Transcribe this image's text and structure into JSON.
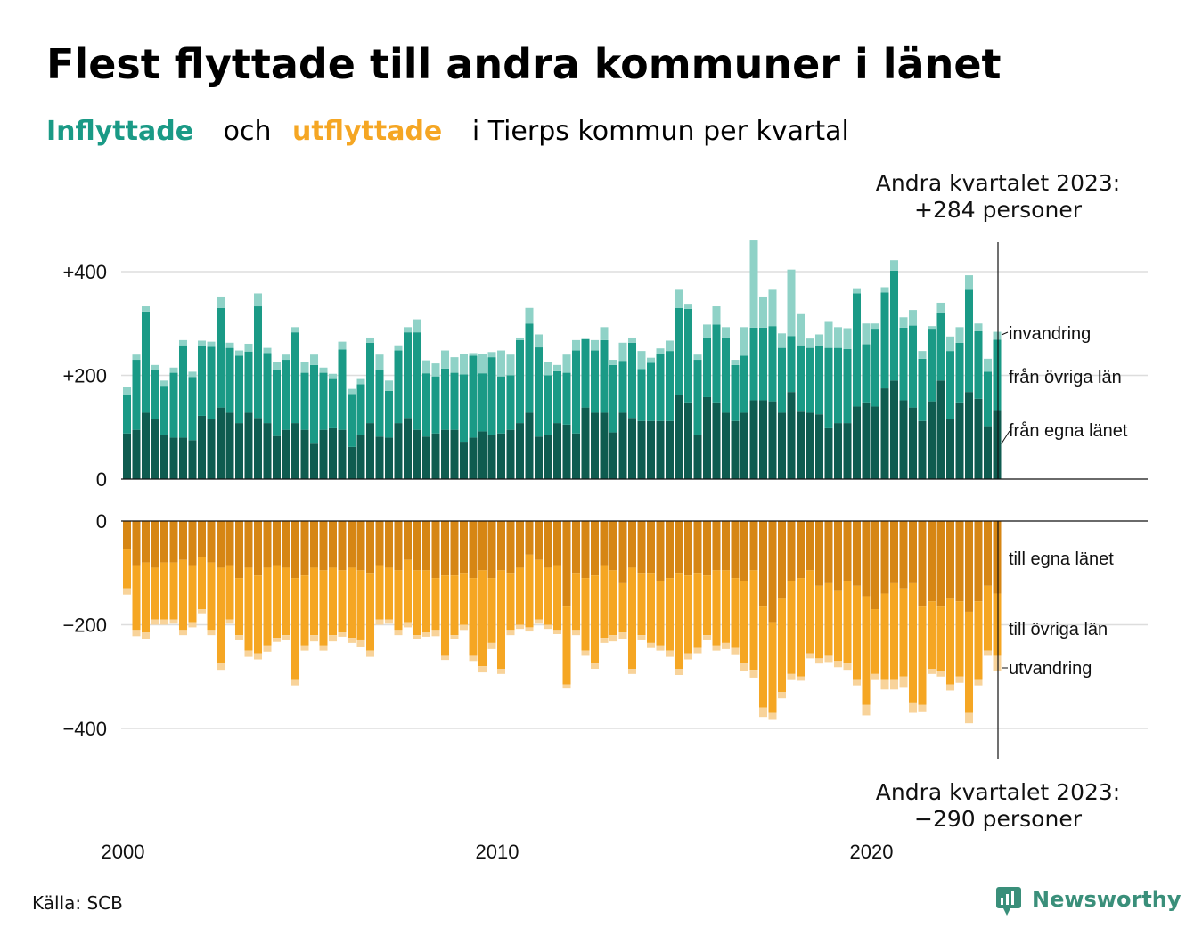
{
  "title": "Flest flyttade till andra kommuner i länet",
  "subtitle": {
    "part1": "Inflyttade",
    "part2": "och",
    "part3": "utflyttade",
    "part4": "i Tierps kommun per kvartal"
  },
  "colors": {
    "in_own": "#0f5c50",
    "in_other": "#1a9a86",
    "in_abroad": "#8fd2c7",
    "out_own": "#d68614",
    "out_other": "#f5a623",
    "out_abroad": "#f8d39a",
    "subtitle_in": "#1a9a86",
    "subtitle_out": "#f5a623",
    "logo": "#3a8f7a"
  },
  "annotations": {
    "top_line1": "Andra kvartalet 2023:",
    "top_line2": "+284 personer",
    "bottom_line1": "Andra kvartalet 2023:",
    "bottom_line2": "−290 personer"
  },
  "labels": {
    "invandring": "invandring",
    "fran_ovriga": "från övriga län",
    "fran_egna": "från egna länet",
    "till_egna": "till egna länet",
    "till_ovriga": "till övriga län",
    "utvandring": "utvandring"
  },
  "source": "Källa: SCB",
  "logo": "Newsworthy",
  "chart_data": {
    "type": "bar",
    "x_start": "2000 Q1",
    "x_labels": [
      "2000",
      "2010",
      "2020"
    ],
    "top_ticks": [
      "0",
      "+200",
      "+400"
    ],
    "bottom_ticks": [
      "0",
      "−200",
      "−400"
    ],
    "ylim_top": [
      0,
      460
    ],
    "ylim_bottom": [
      -400,
      0
    ],
    "inflow": {
      "own_county": [
        88,
        95,
        128,
        115,
        85,
        80,
        80,
        75,
        122,
        115,
        138,
        128,
        108,
        128,
        118,
        108,
        83,
        95,
        108,
        95,
        70,
        95,
        98,
        95,
        62,
        85,
        108,
        82,
        80,
        108,
        118,
        95,
        82,
        88,
        95,
        95,
        72,
        80,
        92,
        85,
        88,
        95,
        108,
        128,
        82,
        85,
        108,
        105,
        88,
        138,
        128,
        128,
        90,
        128,
        118,
        112,
        112,
        112,
        112,
        162,
        148,
        85,
        158,
        148,
        128,
        112,
        128,
        152,
        152,
        150,
        128,
        168,
        130,
        128,
        125,
        98,
        108,
        108,
        140,
        148,
        140,
        175,
        190,
        152,
        138,
        112,
        150,
        190,
        115,
        148,
        168,
        155,
        102,
        133
      ],
      "other_counties": [
        75,
        135,
        195,
        95,
        95,
        125,
        178,
        122,
        135,
        140,
        192,
        125,
        130,
        118,
        215,
        135,
        128,
        135,
        175,
        110,
        150,
        110,
        95,
        155,
        102,
        98,
        155,
        128,
        90,
        140,
        165,
        188,
        122,
        110,
        118,
        110,
        130,
        158,
        112,
        150,
        110,
        105,
        160,
        172,
        172,
        115,
        100,
        100,
        160,
        132,
        120,
        140,
        130,
        100,
        145,
        100,
        112,
        130,
        135,
        168,
        180,
        145,
        115,
        150,
        145,
        108,
        110,
        140,
        140,
        145,
        125,
        108,
        128,
        125,
        132,
        155,
        145,
        143,
        218,
        112,
        150,
        185,
        212,
        140,
        158,
        120,
        140,
        130,
        132,
        115,
        197,
        130,
        105,
        136
      ],
      "abroad": [
        15,
        10,
        10,
        10,
        10,
        10,
        10,
        10,
        10,
        10,
        22,
        10,
        10,
        15,
        25,
        10,
        15,
        10,
        10,
        20,
        20,
        10,
        10,
        15,
        10,
        10,
        10,
        30,
        20,
        10,
        10,
        25,
        25,
        25,
        35,
        30,
        40,
        5,
        38,
        10,
        50,
        40,
        5,
        30,
        25,
        25,
        12,
        35,
        20,
        0,
        20,
        25,
        10,
        35,
        10,
        35,
        10,
        10,
        20,
        35,
        10,
        10,
        25,
        35,
        20,
        10,
        55,
        168,
        60,
        70,
        28,
        128,
        60,
        18,
        22,
        50,
        40,
        40,
        10,
        40,
        10,
        10,
        20,
        20,
        30,
        15,
        5,
        20,
        28,
        30,
        28,
        15,
        25,
        15
      ]
    },
    "outflow": {
      "own_county": [
        -55,
        -85,
        -80,
        -90,
        -80,
        -80,
        -75,
        -85,
        -70,
        -80,
        -90,
        -85,
        -110,
        -90,
        -105,
        -90,
        -85,
        -90,
        -110,
        -105,
        -90,
        -95,
        -90,
        -95,
        -90,
        -95,
        -100,
        -85,
        -90,
        -95,
        -75,
        -95,
        -95,
        -110,
        -105,
        -105,
        -100,
        -110,
        -95,
        -110,
        -95,
        -100,
        -90,
        -65,
        -75,
        -90,
        -85,
        -165,
        -100,
        -110,
        -105,
        -85,
        -95,
        -120,
        -90,
        -100,
        -100,
        -115,
        -110,
        -100,
        -105,
        -100,
        -105,
        -95,
        -95,
        -110,
        -115,
        -95,
        -165,
        -195,
        -150,
        -115,
        -110,
        -95,
        -125,
        -120,
        -135,
        -115,
        -125,
        -145,
        -170,
        -140,
        -120,
        -130,
        -120,
        -165,
        -155,
        -165,
        -150,
        -155,
        -175,
        -155,
        -125,
        -140
      ],
      "other_counties": [
        -75,
        -125,
        -135,
        -100,
        -110,
        -110,
        -135,
        -110,
        -100,
        -130,
        -185,
        -105,
        -110,
        -160,
        -150,
        -150,
        -140,
        -130,
        -195,
        -135,
        -130,
        -145,
        -130,
        -120,
        -135,
        -135,
        -150,
        -105,
        -100,
        -115,
        -120,
        -125,
        -120,
        -100,
        -155,
        -115,
        -100,
        -150,
        -185,
        -125,
        -190,
        -110,
        -110,
        -140,
        -115,
        -110,
        -125,
        -150,
        -110,
        -140,
        -170,
        -140,
        -125,
        -95,
        -195,
        -120,
        -135,
        -125,
        -140,
        -185,
        -150,
        -145,
        -115,
        -145,
        -140,
        -135,
        -160,
        -192,
        -195,
        -175,
        -180,
        -180,
        -190,
        -160,
        -140,
        -140,
        -135,
        -160,
        -180,
        -210,
        -125,
        -165,
        -185,
        -170,
        -230,
        -190,
        -130,
        -125,
        -165,
        -145,
        -195,
        -150,
        -125,
        -120
      ],
      "abroad": [
        -12,
        -12,
        -12,
        -10,
        -10,
        -8,
        -10,
        -10,
        -8,
        -10,
        -12,
        -8,
        -10,
        -12,
        -12,
        -12,
        -8,
        -10,
        -12,
        -10,
        -12,
        -10,
        -12,
        -8,
        -10,
        -12,
        -12,
        -10,
        -8,
        -10,
        -10,
        -8,
        -8,
        -12,
        -8,
        -8,
        -10,
        -10,
        -12,
        -12,
        -10,
        -10,
        -8,
        -8,
        -8,
        -8,
        -8,
        -8,
        -10,
        -10,
        -10,
        -10,
        -12,
        -12,
        -10,
        -10,
        -10,
        -10,
        -12,
        -12,
        -12,
        -10,
        -10,
        -10,
        -12,
        -12,
        -15,
        -15,
        -18,
        -12,
        -12,
        -10,
        -8,
        -10,
        -10,
        -12,
        -12,
        -12,
        -12,
        -20,
        -10,
        -20,
        -20,
        -20,
        -20,
        -12,
        -10,
        -10,
        -12,
        -12,
        -20,
        -12,
        -10,
        -30
      ]
    }
  }
}
